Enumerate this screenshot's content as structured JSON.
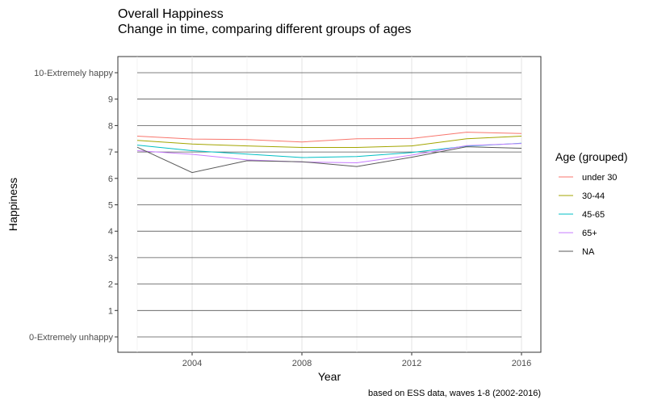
{
  "chart_data": {
    "type": "line",
    "title": "Overall Happiness",
    "subtitle": "Change in time, comparing different groups of ages",
    "xlabel": "Year",
    "ylabel": "Happiness",
    "caption": "based on ESS data, waves 1-8 (2002-2016)",
    "xlim": [
      2002,
      2016
    ],
    "ylim": [
      0,
      10
    ],
    "x_ticks": [
      2004,
      2008,
      2012,
      2016
    ],
    "y_ticks": [
      {
        "value": 0,
        "label": "0-Extremely unhappy"
      },
      {
        "value": 1,
        "label": "1"
      },
      {
        "value": 2,
        "label": "2"
      },
      {
        "value": 3,
        "label": "3"
      },
      {
        "value": 4,
        "label": "4"
      },
      {
        "value": 5,
        "label": "5"
      },
      {
        "value": 6,
        "label": "6"
      },
      {
        "value": 7,
        "label": "7"
      },
      {
        "value": 8,
        "label": "8"
      },
      {
        "value": 9,
        "label": "9"
      },
      {
        "value": 10,
        "label": "10-Extremely happy"
      }
    ],
    "grid": true,
    "legend_title": "Age (grouped)",
    "legend_position": "right",
    "x": [
      2002,
      2004,
      2006,
      2008,
      2010,
      2012,
      2014,
      2016
    ],
    "series": [
      {
        "name": "under 30",
        "color": "#F8766D",
        "values": [
          7.6,
          7.49,
          7.47,
          7.38,
          7.5,
          7.51,
          7.75,
          7.7
        ]
      },
      {
        "name": "30-44",
        "color": "#A3A500",
        "values": [
          7.44,
          7.3,
          7.23,
          7.17,
          7.17,
          7.23,
          7.5,
          7.6
        ]
      },
      {
        "name": "45-65",
        "color": "#00BFC4",
        "values": [
          7.26,
          7.05,
          6.92,
          6.79,
          6.83,
          6.98,
          7.22,
          7.33
        ]
      },
      {
        "name": "65+",
        "color": "#C77CFF",
        "values": [
          7.05,
          6.91,
          6.7,
          6.62,
          6.59,
          6.88,
          7.24,
          7.32
        ]
      },
      {
        "name": "NA",
        "color": "#595959",
        "values": [
          7.18,
          6.22,
          6.67,
          6.63,
          6.45,
          6.8,
          7.2,
          7.14
        ]
      }
    ]
  }
}
